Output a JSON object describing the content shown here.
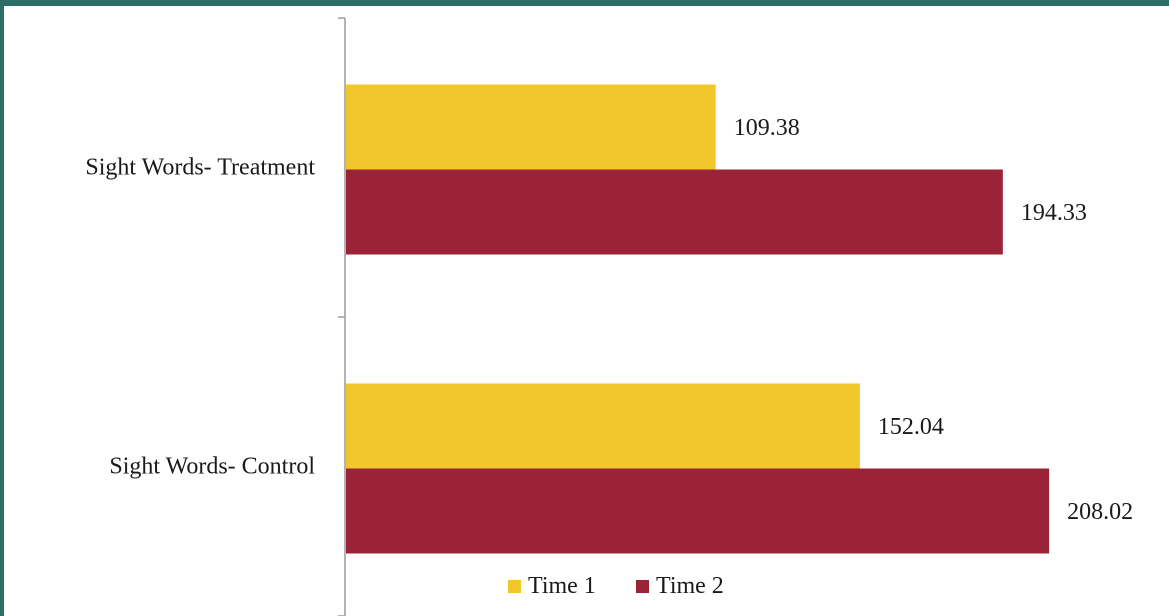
{
  "chart_data": {
    "type": "bar",
    "orientation": "horizontal",
    "categories": [
      "Sight Words- Treatment",
      "Sight Words- Control"
    ],
    "series": [
      {
        "name": "Time 1",
        "color": "#f2c72c",
        "values": [
          109.38,
          152.04
        ],
        "labels": [
          "109.38",
          "152.04"
        ]
      },
      {
        "name": "Time 2",
        "color": "#9b2338",
        "values": [
          194.33,
          208.02
        ],
        "labels": [
          "194.33",
          "208.02"
        ]
      }
    ],
    "title": "",
    "xlabel": "",
    "ylabel": "",
    "xlim": [
      0,
      245
    ],
    "grid": false,
    "legend_position": "bottom"
  }
}
